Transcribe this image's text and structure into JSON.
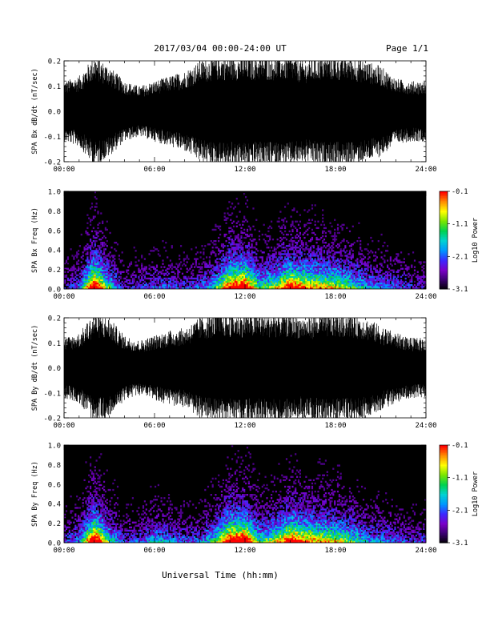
{
  "header": {
    "title": "2017/03/04  00:00-24:00 UT",
    "page": "Page 1/1"
  },
  "xaxis": {
    "label": "Universal Time (hh:mm)",
    "range_hours": [
      0,
      24
    ],
    "ticks": [
      "00:00",
      "06:00",
      "12:00",
      "18:00",
      "24:00"
    ]
  },
  "colorbar": {
    "label": "Log10 Power",
    "range": [
      -3.1,
      -0.1
    ],
    "ticks": [
      "-0.1",
      "-1.1",
      "-2.1",
      "-3.1"
    ],
    "colormap": [
      "#000000",
      "#3a006e",
      "#7a00c8",
      "#3c28ff",
      "#0096ff",
      "#00d2d2",
      "#00d250",
      "#78e600",
      "#ffff00",
      "#ff8c00",
      "#ff0000"
    ]
  },
  "chart_data": [
    {
      "type": "area",
      "panel": "SPA Bx dB/dt",
      "ylabel": "SPA Bx dB/dt (nT/sec)",
      "ylim": [
        -0.2,
        0.2
      ],
      "yticks": [
        "0.2",
        "0.1",
        "0.0",
        "-0.1",
        "-0.2"
      ],
      "x_hours": [
        0,
        1,
        2,
        3,
        4,
        5,
        6,
        7,
        8,
        9,
        10,
        11,
        12,
        13,
        14,
        15,
        16,
        17,
        18,
        19,
        20,
        21,
        22,
        23,
        24
      ],
      "amplitude": [
        0.12,
        0.14,
        0.22,
        0.18,
        0.12,
        0.1,
        0.12,
        0.14,
        0.16,
        0.2,
        0.22,
        0.22,
        0.22,
        0.22,
        0.22,
        0.22,
        0.2,
        0.22,
        0.22,
        0.22,
        0.2,
        0.18,
        0.13,
        0.12,
        0.12
      ]
    },
    {
      "type": "heatmap",
      "panel": "SPA Bx Freq",
      "ylabel": "SPA Bx Freq (Hz)",
      "ylim": [
        0,
        1.0
      ],
      "yticks": [
        "1.0",
        "0.8",
        "0.6",
        "0.4",
        "0.2",
        "0.0"
      ],
      "activity_hours": [
        0,
        1,
        2,
        3,
        4,
        5,
        6,
        7,
        8,
        9,
        10,
        11,
        12,
        13,
        14,
        15,
        16,
        17,
        18,
        19,
        20,
        21,
        22,
        23,
        24
      ],
      "activity": [
        0.2,
        0.3,
        1.0,
        0.5,
        0.2,
        0.25,
        0.3,
        0.3,
        0.25,
        0.3,
        0.45,
        0.9,
        0.95,
        0.5,
        0.6,
        0.9,
        0.75,
        0.7,
        0.65,
        0.55,
        0.4,
        0.35,
        0.3,
        0.25,
        0.2
      ]
    },
    {
      "type": "area",
      "panel": "SPA By dB/dt",
      "ylabel": "SPA By dB/dt (nT/sec)",
      "ylim": [
        -0.2,
        0.2
      ],
      "yticks": [
        "0.2",
        "0.1",
        "0.0",
        "-0.1",
        "-0.2"
      ],
      "x_hours": [
        0,
        1,
        2,
        3,
        4,
        5,
        6,
        7,
        8,
        9,
        10,
        11,
        12,
        13,
        14,
        15,
        16,
        17,
        18,
        19,
        20,
        21,
        22,
        23,
        24
      ],
      "amplitude": [
        0.12,
        0.14,
        0.22,
        0.2,
        0.13,
        0.11,
        0.13,
        0.15,
        0.16,
        0.2,
        0.22,
        0.22,
        0.22,
        0.22,
        0.22,
        0.22,
        0.2,
        0.22,
        0.22,
        0.22,
        0.2,
        0.17,
        0.14,
        0.12,
        0.12
      ]
    },
    {
      "type": "heatmap",
      "panel": "SPA By Freq",
      "ylabel": "SPA By Freq (Hz)",
      "ylim": [
        0,
        1.0
      ],
      "yticks": [
        "1.0",
        "0.8",
        "0.6",
        "0.4",
        "0.2",
        "0.0"
      ],
      "activity_hours": [
        0,
        1,
        2,
        3,
        4,
        5,
        6,
        7,
        8,
        9,
        10,
        11,
        12,
        13,
        14,
        15,
        16,
        17,
        18,
        19,
        20,
        21,
        22,
        23,
        24
      ],
      "activity": [
        0.25,
        0.35,
        1.0,
        0.5,
        0.25,
        0.3,
        0.4,
        0.35,
        0.3,
        0.3,
        0.5,
        0.95,
        0.95,
        0.5,
        0.6,
        0.9,
        0.75,
        0.7,
        0.65,
        0.55,
        0.4,
        0.35,
        0.3,
        0.25,
        0.25
      ]
    }
  ]
}
